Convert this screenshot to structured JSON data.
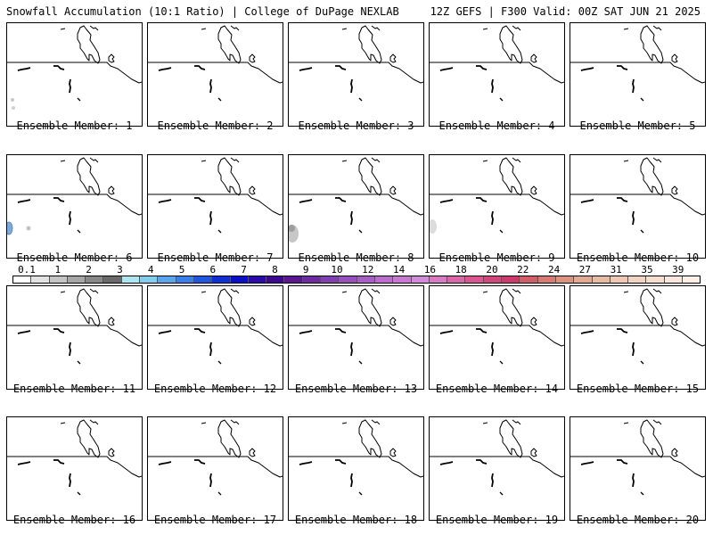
{
  "header": {
    "title": "Snowfall Accumulation (10:1 Ratio) | College of DuPage NEXLAB",
    "valid": "12Z GEFS | F300 Valid: 00Z SAT JUN 21 2025"
  },
  "colorbar": {
    "labels": [
      "0.1",
      "1",
      "2",
      "3",
      "4",
      "5",
      "6",
      "7",
      "8",
      "9",
      "10",
      "12",
      "14",
      "16",
      "18",
      "20",
      "22",
      "24",
      "27",
      "31",
      "35",
      "39"
    ],
    "colors": [
      "#ffffff",
      "#e2e2e2",
      "#c4c4c4",
      "#a6a6a6",
      "#888888",
      "#6a6a6a",
      "#aee6f0",
      "#84cdef",
      "#5aa6ec",
      "#3a7fe8",
      "#2356e0",
      "#1030d2",
      "#0b10c8",
      "#2a0aa8",
      "#3d0790",
      "#5a1590",
      "#6e2ba0",
      "#8240ae",
      "#9650ba",
      "#a95ec4",
      "#bb6ccc",
      "#c87ad2",
      "#d18cd8",
      "#d77cc2",
      "#d868a8",
      "#d85692",
      "#d2467e",
      "#cc3a6c",
      "#d05e6a",
      "#d67a74",
      "#dc9482",
      "#e2aa92",
      "#e8bca4",
      "#eecab4",
      "#f2d4c0",
      "#f6dece",
      "#fae6dc",
      "#fdeee6"
    ]
  },
  "panels": [
    {
      "label": "Ensemble Member: 1",
      "shade": "dots"
    },
    {
      "label": "Ensemble Member: 2",
      "shade": "none"
    },
    {
      "label": "Ensemble Member: 3",
      "shade": "none"
    },
    {
      "label": "Ensemble Member: 4",
      "shade": "none"
    },
    {
      "label": "Ensemble Member: 5",
      "shade": "none"
    },
    {
      "label": "Ensemble Member: 6",
      "shade": "blue"
    },
    {
      "label": "Ensemble Member: 7",
      "shade": "none"
    },
    {
      "label": "Ensemble Member: 8",
      "shade": "gray"
    },
    {
      "label": "Ensemble Member: 9",
      "shade": "lightgray"
    },
    {
      "label": "Ensemble Member: 10",
      "shade": "none"
    },
    {
      "label": "Ensemble Member: 11",
      "shade": "none"
    },
    {
      "label": "Ensemble Member: 12",
      "shade": "none"
    },
    {
      "label": "Ensemble Member: 13",
      "shade": "none"
    },
    {
      "label": "Ensemble Member: 14",
      "shade": "none"
    },
    {
      "label": "Ensemble Member: 15",
      "shade": "none"
    },
    {
      "label": "Ensemble Member: 16",
      "shade": "none"
    },
    {
      "label": "Ensemble Member: 17",
      "shade": "none"
    },
    {
      "label": "Ensemble Member: 18",
      "shade": "none"
    },
    {
      "label": "Ensemble Member: 19",
      "shade": "none"
    },
    {
      "label": "Ensemble Member: 20",
      "shade": "none"
    }
  ]
}
